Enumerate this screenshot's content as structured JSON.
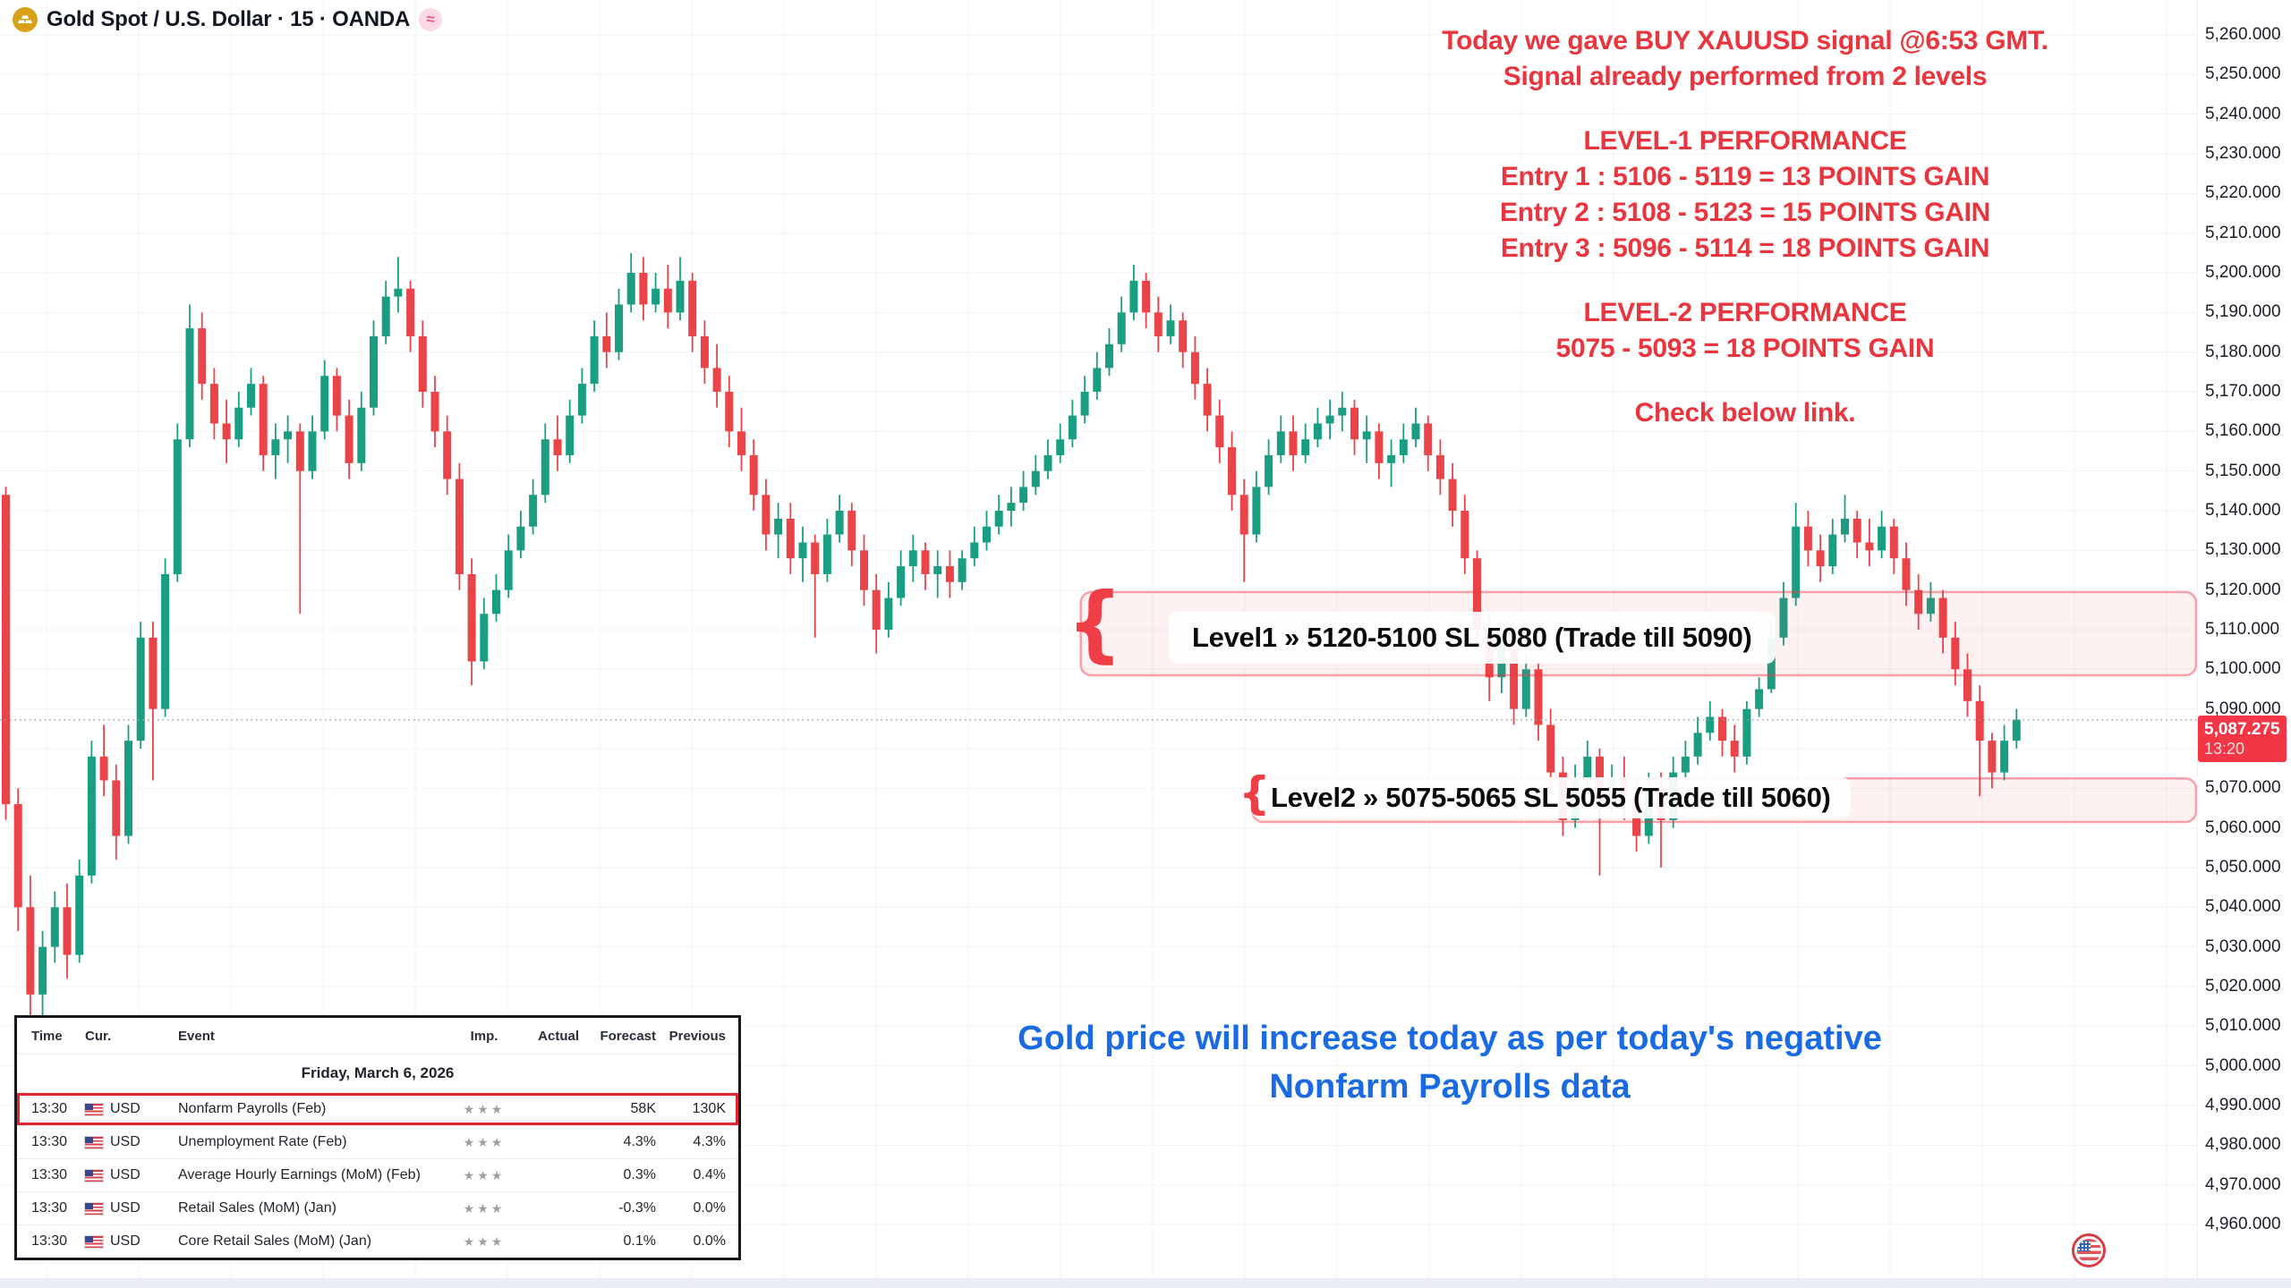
{
  "header": {
    "symbol_title": "Gold Spot / U.S. Dollar · 15 · OANDA"
  },
  "icons": {
    "gold_coin": "gold-bars",
    "market_status": "≈",
    "brace": "{",
    "star": "★"
  },
  "colors": {
    "up": "#1a9e82",
    "down": "#ea4348",
    "accent_red": "#e9353d",
    "accent_blue": "#1a6ae3",
    "badge_red": "#f23645",
    "zone_fill": "rgba(242,54,69,0.07)",
    "zone_border": "rgba(242,54,69,0.45)",
    "grid": "#f1f3f6",
    "price_line": "#9aa0a8"
  },
  "annotations": {
    "red_lines": [
      "Today we gave BUY XAUUSD signal @6:53 GMT.",
      "Signal already performed from 2 levels",
      "",
      "LEVEL-1 PERFORMANCE",
      "Entry 1 : 5106 - 5119 = 13 POINTS GAIN",
      "Entry 2 : 5108 - 5123 = 15 POINTS GAIN",
      "Entry 3 : 5096 - 5114 = 18 POINTS GAIN",
      "",
      "LEVEL-2 PERFORMANCE",
      "5075 - 5093 = 18 POINTS GAIN",
      "",
      "Check below link."
    ],
    "blue_lines": [
      "Gold price will increase today as per today's negative",
      "Nonfarm Payrolls data"
    ],
    "level1_label": "Level1 » 5120-5100 SL 5080 (Trade till 5090)",
    "level2_label": "Level2 » 5075-5065 SL 5055 (Trade till 5060)"
  },
  "calendar": {
    "columns": [
      "Time",
      "Cur.",
      "Event",
      "Imp.",
      "Actual",
      "Forecast",
      "Previous"
    ],
    "date_header": "Friday, March 6, 2026",
    "rows": [
      {
        "time": "13:30",
        "currency": "USD",
        "event": "Nonfarm Payrolls (Feb)",
        "importance": 3,
        "actual": "",
        "forecast": "58K",
        "previous": "130K",
        "highlighted": true
      },
      {
        "time": "13:30",
        "currency": "USD",
        "event": "Unemployment Rate (Feb)",
        "importance": 3,
        "actual": "",
        "forecast": "4.3%",
        "previous": "4.3%",
        "highlighted": false
      },
      {
        "time": "13:30",
        "currency": "USD",
        "event": "Average Hourly Earnings (MoM) (Feb)",
        "importance": 3,
        "actual": "",
        "forecast": "0.3%",
        "previous": "0.4%",
        "highlighted": false
      },
      {
        "time": "13:30",
        "currency": "USD",
        "event": "Retail Sales (MoM) (Jan)",
        "importance": 3,
        "actual": "",
        "forecast": "-0.3%",
        "previous": "0.0%",
        "highlighted": false
      },
      {
        "time": "13:30",
        "currency": "USD",
        "event": "Core Retail Sales (MoM) (Jan)",
        "importance": 3,
        "actual": "",
        "forecast": "0.1%",
        "previous": "0.0%",
        "highlighted": false
      }
    ]
  },
  "chart_data": {
    "type": "candlestick",
    "symbol": "Gold Spot / U.S. Dollar",
    "interval": "15",
    "exchange": "OANDA",
    "price_axis": {
      "labels": [
        "5,260.000",
        "5,250.000",
        "5,240.000",
        "5,230.000",
        "5,220.000",
        "5,210.000",
        "5,200.000",
        "5,190.000",
        "5,180.000",
        "5,170.000",
        "5,160.000",
        "5,150.000",
        "5,140.000",
        "5,130.000",
        "5,120.000",
        "5,110.000",
        "5,100.000",
        "5,090.000",
        "5,080.000",
        "5,070.000",
        "5,060.000",
        "5,050.000",
        "5,040.000",
        "5,030.000",
        "5,020.000",
        "5,010.000",
        "5,000.000",
        "4,990.000",
        "4,980.000",
        "4,970.000",
        "4,960.000"
      ]
    },
    "last": {
      "price": "5,087.275",
      "time": "13:20",
      "value": 5087.275
    },
    "zones": [
      {
        "name": "level1",
        "top": 5119.5,
        "bottom": 5098.5,
        "from_candle": 88
      },
      {
        "name": "level2",
        "top": 5072.5,
        "bottom": 5061.5,
        "from_candle": 102
      }
    ],
    "candles": [
      [
        5144,
        5146,
        5062,
        5066
      ],
      [
        5066,
        5070,
        5034,
        5040
      ],
      [
        5040,
        5048,
        5006,
        5018
      ],
      [
        5018,
        5034,
        4998,
        5030
      ],
      [
        5030,
        5044,
        5026,
        5040
      ],
      [
        5040,
        5046,
        5022,
        5028
      ],
      [
        5028,
        5052,
        5026,
        5048
      ],
      [
        5048,
        5082,
        5046,
        5078
      ],
      [
        5078,
        5086,
        5068,
        5072
      ],
      [
        5072,
        5076,
        5052,
        5058
      ],
      [
        5058,
        5086,
        5056,
        5082
      ],
      [
        5082,
        5112,
        5080,
        5108
      ],
      [
        5108,
        5112,
        5072,
        5090
      ],
      [
        5090,
        5128,
        5088,
        5124
      ],
      [
        5124,
        5162,
        5122,
        5158
      ],
      [
        5158,
        5192,
        5156,
        5186
      ],
      [
        5186,
        5190,
        5168,
        5172
      ],
      [
        5172,
        5176,
        5158,
        5162
      ],
      [
        5162,
        5168,
        5152,
        5158
      ],
      [
        5158,
        5170,
        5156,
        5166
      ],
      [
        5166,
        5176,
        5164,
        5172
      ],
      [
        5172,
        5174,
        5150,
        5154
      ],
      [
        5154,
        5162,
        5148,
        5158
      ],
      [
        5158,
        5164,
        5152,
        5160
      ],
      [
        5160,
        5162,
        5114,
        5150
      ],
      [
        5150,
        5164,
        5148,
        5160
      ],
      [
        5160,
        5178,
        5158,
        5174
      ],
      [
        5174,
        5176,
        5160,
        5164
      ],
      [
        5164,
        5168,
        5148,
        5152
      ],
      [
        5152,
        5170,
        5150,
        5166
      ],
      [
        5166,
        5188,
        5164,
        5184
      ],
      [
        5184,
        5198,
        5182,
        5194
      ],
      [
        5194,
        5204,
        5190,
        5196
      ],
      [
        5196,
        5198,
        5180,
        5184
      ],
      [
        5184,
        5188,
        5166,
        5170
      ],
      [
        5170,
        5174,
        5156,
        5160
      ],
      [
        5160,
        5164,
        5144,
        5148
      ],
      [
        5148,
        5152,
        5120,
        5124
      ],
      [
        5124,
        5128,
        5096,
        5102
      ],
      [
        5102,
        5118,
        5100,
        5114
      ],
      [
        5114,
        5124,
        5112,
        5120
      ],
      [
        5120,
        5134,
        5118,
        5130
      ],
      [
        5130,
        5140,
        5128,
        5136
      ],
      [
        5136,
        5148,
        5134,
        5144
      ],
      [
        5144,
        5162,
        5142,
        5158
      ],
      [
        5158,
        5164,
        5150,
        5154
      ],
      [
        5154,
        5168,
        5152,
        5164
      ],
      [
        5164,
        5176,
        5162,
        5172
      ],
      [
        5172,
        5188,
        5170,
        5184
      ],
      [
        5184,
        5190,
        5176,
        5180
      ],
      [
        5180,
        5196,
        5178,
        5192
      ],
      [
        5192,
        5205,
        5190,
        5200
      ],
      [
        5200,
        5204,
        5188,
        5192
      ],
      [
        5192,
        5200,
        5190,
        5196
      ],
      [
        5196,
        5202,
        5186,
        5190
      ],
      [
        5190,
        5204,
        5188,
        5198
      ],
      [
        5198,
        5200,
        5180,
        5184
      ],
      [
        5184,
        5188,
        5172,
        5176
      ],
      [
        5176,
        5182,
        5166,
        5170
      ],
      [
        5170,
        5174,
        5156,
        5160
      ],
      [
        5160,
        5166,
        5150,
        5154
      ],
      [
        5154,
        5158,
        5140,
        5144
      ],
      [
        5144,
        5148,
        5130,
        5134
      ],
      [
        5134,
        5142,
        5128,
        5138
      ],
      [
        5138,
        5142,
        5124,
        5128
      ],
      [
        5128,
        5136,
        5122,
        5132
      ],
      [
        5132,
        5134,
        5108,
        5124
      ],
      [
        5124,
        5138,
        5122,
        5134
      ],
      [
        5134,
        5144,
        5132,
        5140
      ],
      [
        5140,
        5142,
        5126,
        5130
      ],
      [
        5130,
        5134,
        5116,
        5120
      ],
      [
        5120,
        5124,
        5104,
        5110
      ],
      [
        5110,
        5122,
        5108,
        5118
      ],
      [
        5118,
        5130,
        5116,
        5126
      ],
      [
        5126,
        5134,
        5122,
        5130
      ],
      [
        5130,
        5132,
        5120,
        5124
      ],
      [
        5124,
        5130,
        5118,
        5126
      ],
      [
        5126,
        5130,
        5118,
        5122
      ],
      [
        5122,
        5130,
        5120,
        5128
      ],
      [
        5128,
        5136,
        5126,
        5132
      ],
      [
        5132,
        5140,
        5130,
        5136
      ],
      [
        5136,
        5144,
        5134,
        5140
      ],
      [
        5140,
        5146,
        5136,
        5142
      ],
      [
        5142,
        5150,
        5140,
        5146
      ],
      [
        5146,
        5154,
        5144,
        5150
      ],
      [
        5150,
        5158,
        5148,
        5154
      ],
      [
        5154,
        5162,
        5152,
        5158
      ],
      [
        5158,
        5168,
        5156,
        5164
      ],
      [
        5164,
        5174,
        5162,
        5170
      ],
      [
        5170,
        5180,
        5168,
        5176
      ],
      [
        5176,
        5186,
        5174,
        5182
      ],
      [
        5182,
        5194,
        5180,
        5190
      ],
      [
        5190,
        5202,
        5188,
        5198
      ],
      [
        5198,
        5200,
        5186,
        5190
      ],
      [
        5190,
        5194,
        5180,
        5184
      ],
      [
        5184,
        5192,
        5182,
        5188
      ],
      [
        5188,
        5190,
        5176,
        5180
      ],
      [
        5180,
        5184,
        5168,
        5172
      ],
      [
        5172,
        5176,
        5160,
        5164
      ],
      [
        5164,
        5168,
        5152,
        5156
      ],
      [
        5156,
        5160,
        5140,
        5144
      ],
      [
        5144,
        5148,
        5122,
        5134
      ],
      [
        5134,
        5150,
        5132,
        5146
      ],
      [
        5146,
        5158,
        5144,
        5154
      ],
      [
        5154,
        5164,
        5152,
        5160
      ],
      [
        5160,
        5164,
        5150,
        5154
      ],
      [
        5154,
        5162,
        5152,
        5158
      ],
      [
        5158,
        5166,
        5156,
        5162
      ],
      [
        5162,
        5168,
        5158,
        5164
      ],
      [
        5164,
        5170,
        5160,
        5166
      ],
      [
        5166,
        5168,
        5154,
        5158
      ],
      [
        5158,
        5164,
        5152,
        5160
      ],
      [
        5160,
        5162,
        5148,
        5152
      ],
      [
        5152,
        5158,
        5146,
        5154
      ],
      [
        5154,
        5162,
        5152,
        5158
      ],
      [
        5158,
        5166,
        5156,
        5162
      ],
      [
        5162,
        5164,
        5150,
        5154
      ],
      [
        5154,
        5158,
        5144,
        5148
      ],
      [
        5148,
        5152,
        5136,
        5140
      ],
      [
        5140,
        5144,
        5124,
        5128
      ],
      [
        5128,
        5130,
        5106,
        5110
      ],
      [
        5110,
        5114,
        5092,
        5098
      ],
      [
        5098,
        5110,
        5094,
        5106
      ],
      [
        5106,
        5108,
        5086,
        5090
      ],
      [
        5090,
        5104,
        5088,
        5100
      ],
      [
        5100,
        5102,
        5082,
        5086
      ],
      [
        5086,
        5090,
        5070,
        5074
      ],
      [
        5074,
        5078,
        5058,
        5062
      ],
      [
        5062,
        5076,
        5060,
        5072
      ],
      [
        5072,
        5082,
        5070,
        5078
      ],
      [
        5078,
        5080,
        5048,
        5066
      ],
      [
        5066,
        5076,
        5064,
        5072
      ],
      [
        5072,
        5078,
        5062,
        5068
      ],
      [
        5068,
        5072,
        5054,
        5058
      ],
      [
        5058,
        5074,
        5056,
        5070
      ],
      [
        5070,
        5074,
        5050,
        5062
      ],
      [
        5062,
        5078,
        5060,
        5074
      ],
      [
        5074,
        5082,
        5072,
        5078
      ],
      [
        5078,
        5088,
        5076,
        5084
      ],
      [
        5084,
        5092,
        5082,
        5088
      ],
      [
        5088,
        5090,
        5078,
        5082
      ],
      [
        5082,
        5086,
        5074,
        5078
      ],
      [
        5078,
        5092,
        5076,
        5090
      ],
      [
        5090,
        5098,
        5088,
        5095
      ],
      [
        5095,
        5112,
        5094,
        5108
      ],
      [
        5108,
        5122,
        5106,
        5118
      ],
      [
        5118,
        5142,
        5116,
        5136
      ],
      [
        5136,
        5140,
        5126,
        5130
      ],
      [
        5130,
        5134,
        5122,
        5126
      ],
      [
        5126,
        5138,
        5124,
        5134
      ],
      [
        5134,
        5144,
        5132,
        5138
      ],
      [
        5138,
        5140,
        5128,
        5132
      ],
      [
        5132,
        5138,
        5126,
        5130
      ],
      [
        5130,
        5140,
        5128,
        5136
      ],
      [
        5136,
        5138,
        5124,
        5128
      ],
      [
        5128,
        5132,
        5116,
        5120
      ],
      [
        5120,
        5124,
        5110,
        5114
      ],
      [
        5114,
        5122,
        5112,
        5118
      ],
      [
        5118,
        5120,
        5104,
        5108
      ],
      [
        5108,
        5112,
        5096,
        5100
      ],
      [
        5100,
        5104,
        5088,
        5092
      ],
      [
        5092,
        5096,
        5068,
        5082
      ],
      [
        5082,
        5084,
        5070,
        5074
      ],
      [
        5074,
        5086,
        5072,
        5082
      ],
      [
        5082,
        5090,
        5080,
        5087.275
      ]
    ]
  }
}
